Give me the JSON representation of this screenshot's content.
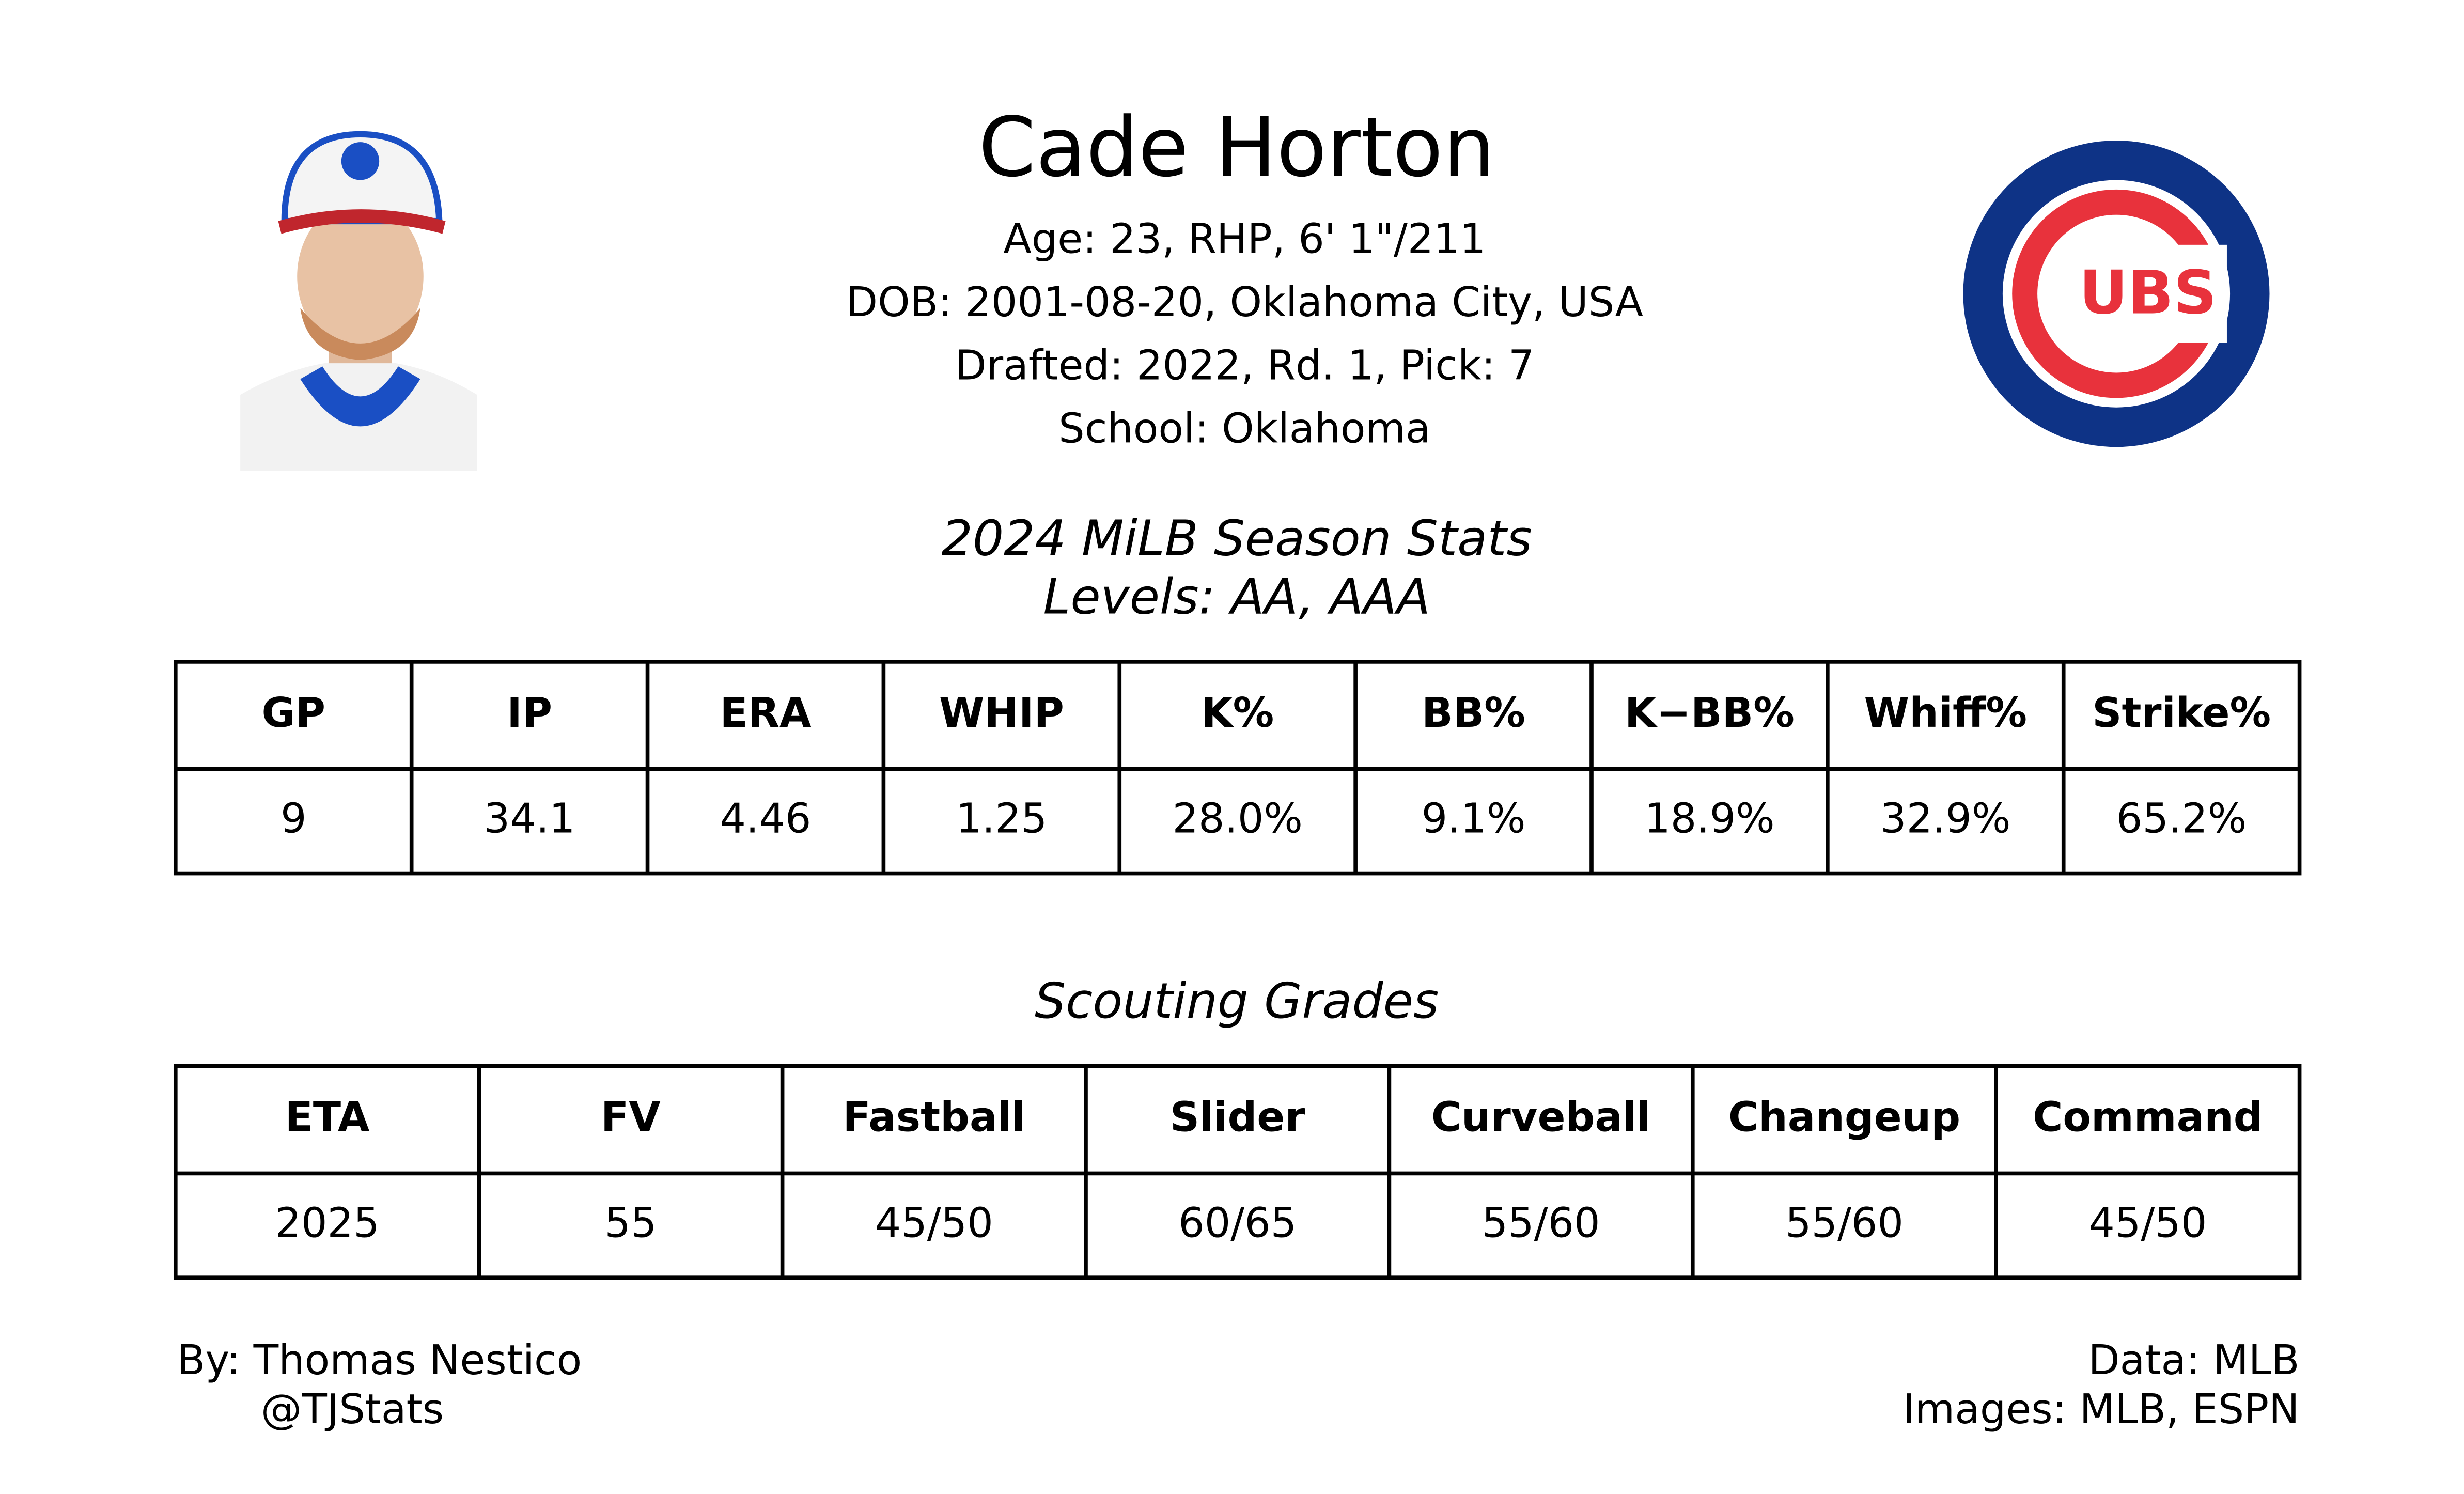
{
  "header": {
    "name": "Cade Horton",
    "lines": [
      "Age: 23, RHP, 6' 1\"/211",
      "DOB: 2001-08-20, Oklahoma City, USA",
      "Drafted: 2022, Rd. 1, Pick: 7",
      "School: Oklahoma"
    ]
  },
  "logo": {
    "text": "UBS"
  },
  "stats": {
    "title": "2024 MiLB Season Stats",
    "subtitle": "Levels: AA, AAA",
    "columns": [
      "GP",
      "IP",
      "ERA",
      "WHIP",
      "K%",
      "BB%",
      "K−BB%",
      "Whiff%",
      "Strike%"
    ],
    "values": [
      "9",
      "34.1",
      "4.46",
      "1.25",
      "28.0%",
      "9.1%",
      "18.9%",
      "32.9%",
      "65.2%"
    ]
  },
  "grades": {
    "title": "Scouting Grades",
    "columns": [
      "ETA",
      "FV",
      "Fastball",
      "Slider",
      "Curveball",
      "Changeup",
      "Command"
    ],
    "values": [
      "2025",
      "55",
      "45/50",
      "60/65",
      "55/60",
      "55/60",
      "45/50"
    ]
  },
  "footer": {
    "left": [
      "By: Thomas Nestico",
      "@TJStats"
    ],
    "right": [
      "Data: MLB",
      "Images: MLB, ESPN"
    ]
  }
}
